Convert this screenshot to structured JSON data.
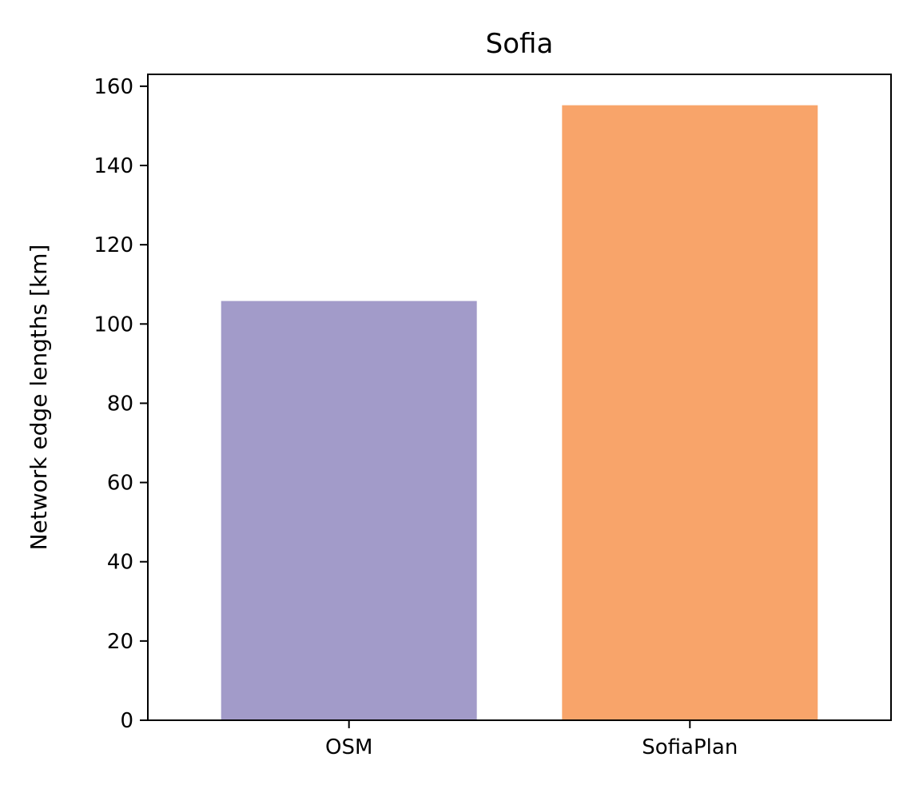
{
  "chart_data": {
    "type": "bar",
    "title": "Sofia",
    "xlabel": "",
    "ylabel": "Network edge lengths [km]",
    "categories": [
      "OSM",
      "SofiaPlan"
    ],
    "values": [
      105.8,
      155.2
    ],
    "colors": [
      "#a29bc9",
      "#f8a46a"
    ],
    "ylim": [
      0,
      163
    ],
    "yticks": [
      0,
      20,
      40,
      60,
      80,
      100,
      120,
      140,
      160
    ],
    "grid": false,
    "legend": "none"
  }
}
